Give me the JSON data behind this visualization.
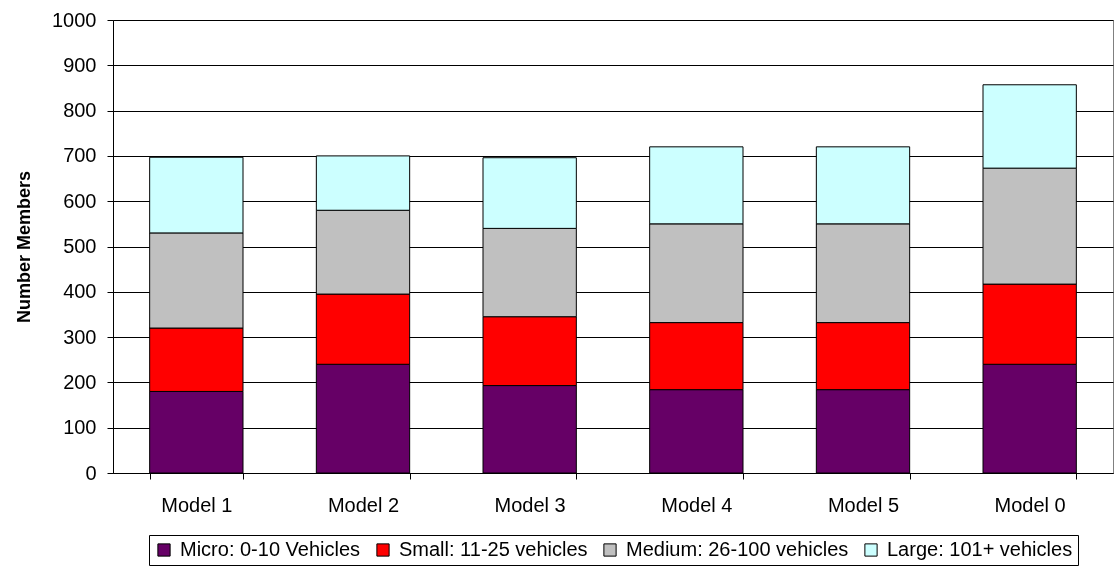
{
  "chart_data": {
    "type": "bar",
    "stacked": true,
    "ylabel": "Number Members",
    "categories": [
      "Model 1",
      "Model 2",
      "Model 3",
      "Model 4",
      "Model 5",
      "Model 0"
    ],
    "series": [
      {
        "name": "Micro: 0-10 Vehicles",
        "color": "#660066",
        "values": [
          180,
          240,
          193,
          184,
          184,
          240
        ]
      },
      {
        "name": "Small: 11-25 vehicles",
        "color": "#ff0000",
        "values": [
          140,
          155,
          152,
          148,
          148,
          177
        ]
      },
      {
        "name": "Medium: 26-100 vehicles",
        "color": "#c0c0c0",
        "values": [
          210,
          185,
          195,
          218,
          218,
          256
        ]
      },
      {
        "name": "Large: 101+ vehicles",
        "color": "#ccffff",
        "values": [
          167,
          120,
          156,
          170,
          170,
          184
        ]
      }
    ],
    "ylim": [
      0,
      1000
    ],
    "yticks": [
      0,
      100,
      200,
      300,
      400,
      500,
      600,
      700,
      800,
      900,
      1000
    ],
    "grid": "y",
    "legend": "bottom"
  }
}
